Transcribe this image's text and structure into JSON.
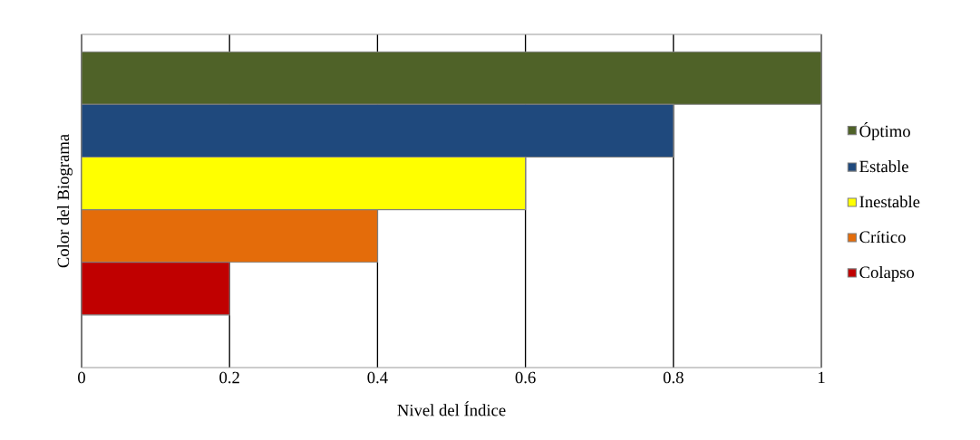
{
  "chart_data": {
    "type": "bar",
    "orientation": "horizontal",
    "xlabel": "Nivel del Índice",
    "ylabel": "Color del Biograma",
    "categories": [
      null
    ],
    "series": [
      {
        "name": "Óptimo",
        "color": "#4f6228",
        "values": [
          1
        ]
      },
      {
        "name": "Estable",
        "color": "#1f497d",
        "values": [
          0.8
        ]
      },
      {
        "name": "Inestable",
        "color": "#ffff00",
        "values": [
          0.6
        ]
      },
      {
        "name": "Crítico",
        "color": "#e46c0a",
        "values": [
          0.4
        ]
      },
      {
        "name": "Colapso",
        "color": "#c00000",
        "values": [
          0.2
        ]
      }
    ],
    "xlim": [
      0,
      1
    ],
    "xticks": [
      0,
      0.2,
      0.4,
      0.6,
      0.8,
      1
    ],
    "grid": "x",
    "legend": "right",
    "tick_labels": "x"
  }
}
